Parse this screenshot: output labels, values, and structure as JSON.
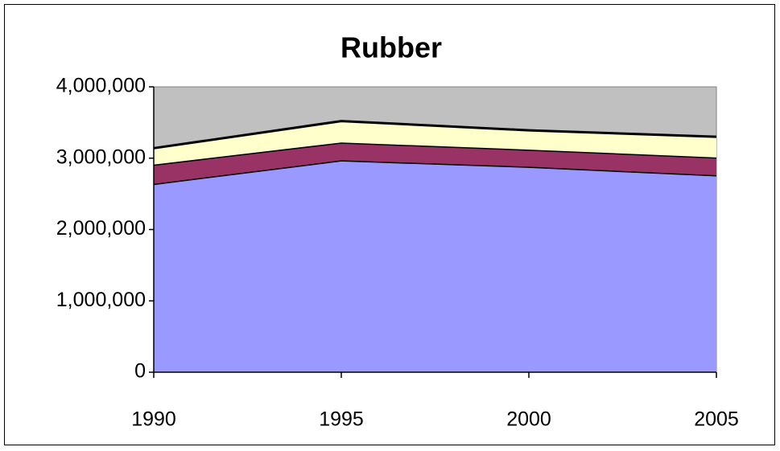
{
  "chart_data": {
    "type": "stacked_area",
    "title": "Rubber",
    "x": [
      1990,
      1995,
      2000,
      2005
    ],
    "xlim": [
      1990,
      2005
    ],
    "xticks": [
      1990,
      1995,
      2000,
      2005
    ],
    "ylim": [
      0,
      4000000
    ],
    "yticks": [
      0,
      {
        "value": 1000000,
        "label": "1,000,000"
      },
      {
        "value": 2000000,
        "label": "2,000,000"
      },
      {
        "value": 3000000,
        "label": "3,000,000"
      },
      {
        "value": 4000000,
        "label": "4,000,000"
      }
    ],
    "plot_background": "#c0c0c0",
    "series": [
      {
        "color": "#9999ff",
        "values": [
          2640000,
          2970000,
          2880000,
          2760000
        ]
      },
      {
        "color": "#993366",
        "values": [
          270000,
          250000,
          240000,
          250000
        ]
      },
      {
        "color": "#ffffcc",
        "values": [
          230000,
          300000,
          270000,
          290000
        ]
      }
    ]
  }
}
